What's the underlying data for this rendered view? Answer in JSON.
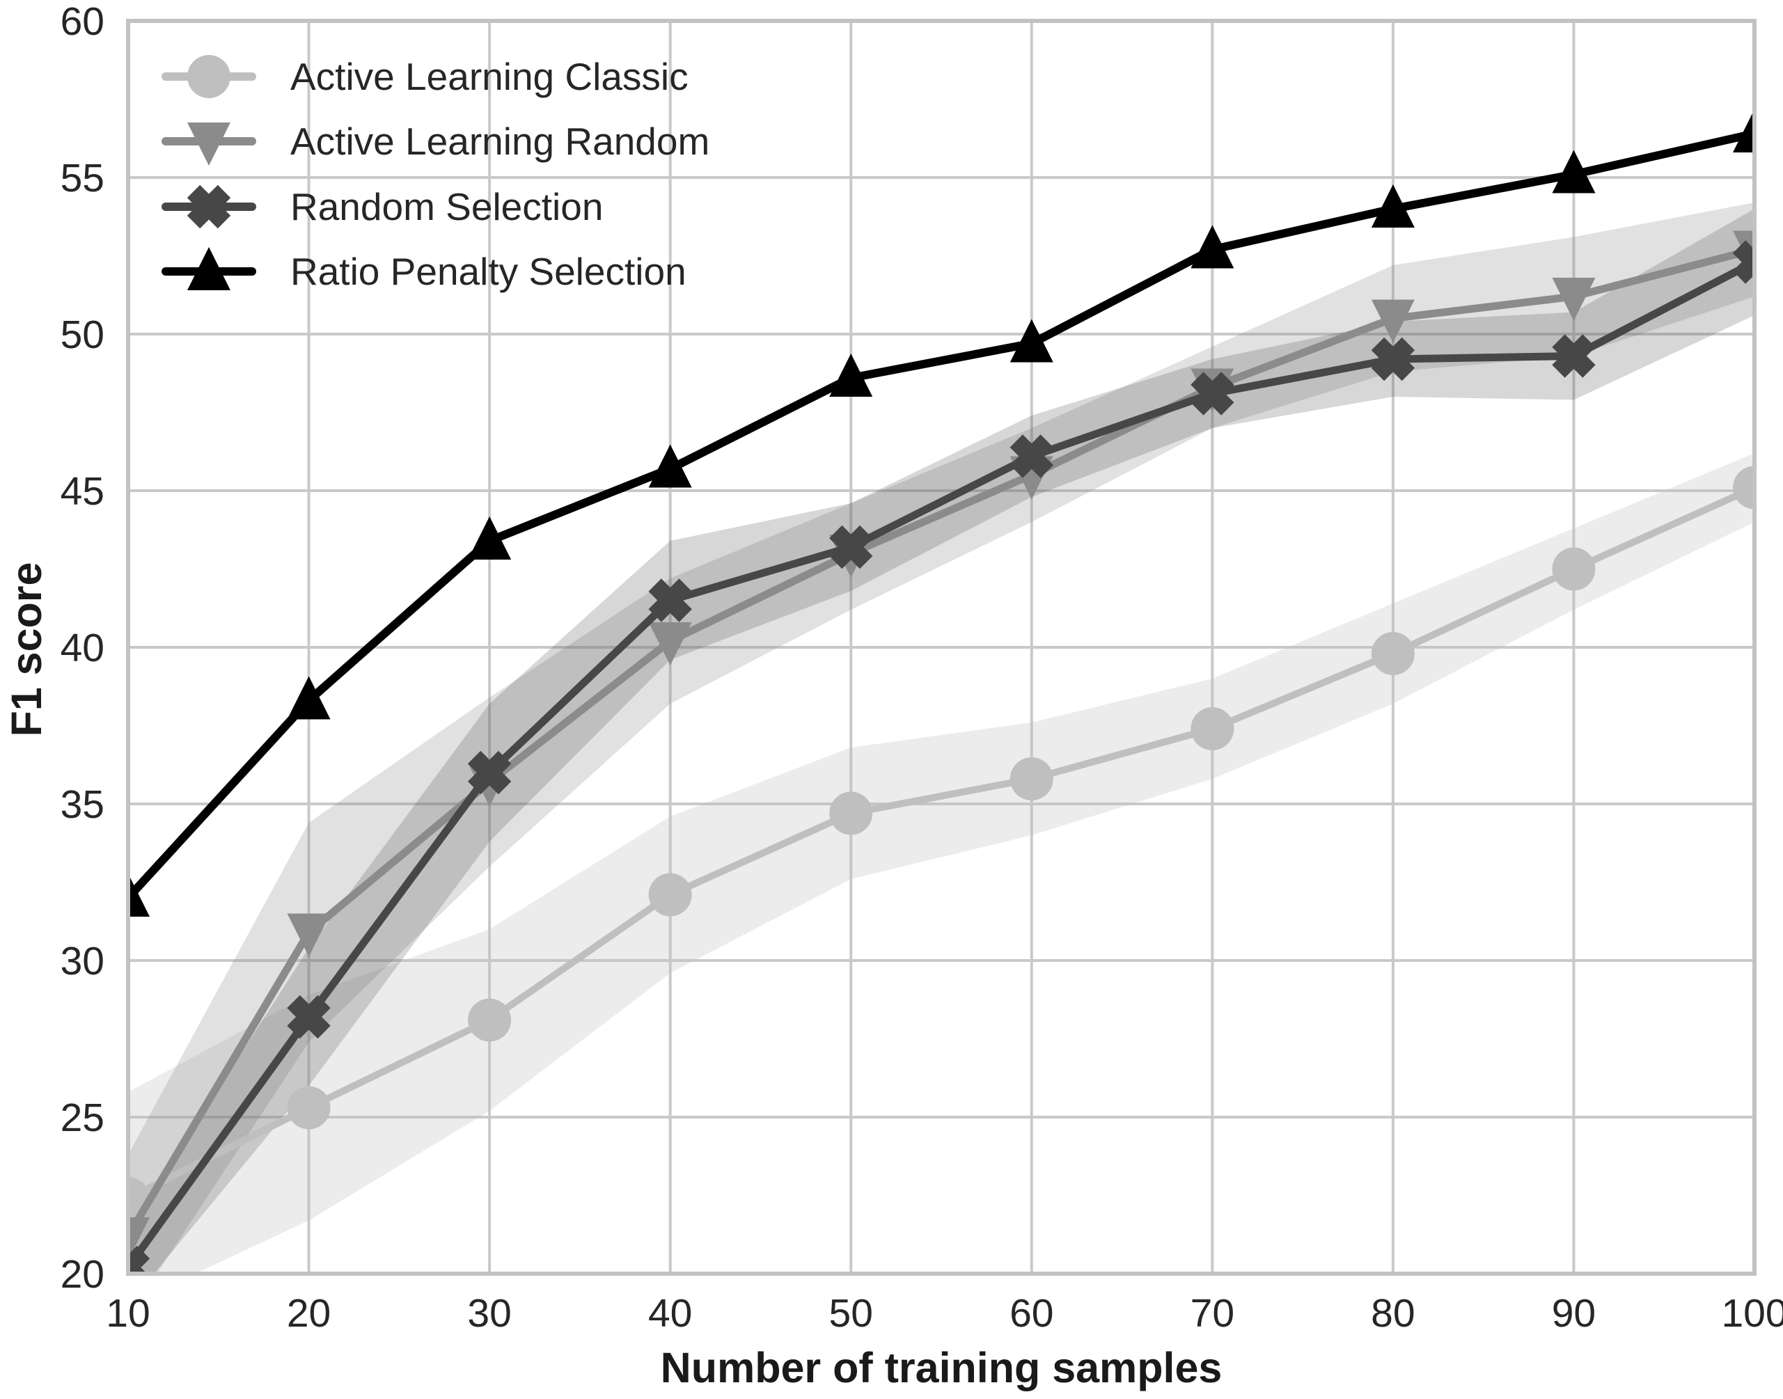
{
  "chart_data": {
    "type": "line",
    "title": "",
    "xlabel": "Number of training samples",
    "ylabel": "F1 score",
    "xlim": [
      10,
      100
    ],
    "ylim": [
      20,
      60
    ],
    "xticks": [
      10,
      20,
      30,
      40,
      50,
      60,
      70,
      80,
      90,
      100
    ],
    "yticks": [
      20,
      25,
      30,
      35,
      40,
      45,
      50,
      55,
      60
    ],
    "grid": true,
    "legend_position": "upper-left",
    "x": [
      10,
      20,
      30,
      40,
      50,
      60,
      70,
      80,
      90,
      100
    ],
    "series": [
      {
        "name": "Active Learning Classic",
        "marker": "circle",
        "color": "#bfbfbf",
        "line_width": 10,
        "values": [
          22.4,
          25.3,
          28.1,
          32.1,
          34.7,
          35.8,
          37.4,
          39.8,
          42.5,
          45.1
        ],
        "band": {
          "lower": [
            19.0,
            21.7,
            25.2,
            29.6,
            32.6,
            34.0,
            35.8,
            38.2,
            41.2,
            44.0
          ],
          "upper": [
            25.8,
            28.9,
            31.0,
            34.6,
            36.8,
            37.6,
            39.0,
            41.4,
            43.8,
            46.2
          ],
          "opacity": 0.3
        }
      },
      {
        "name": "Active Learning Random",
        "marker": "triangle-down",
        "color": "#8b8b8b",
        "line_width": 11,
        "values": [
          21.2,
          30.9,
          35.7,
          40.2,
          43.0,
          45.5,
          48.3,
          50.5,
          51.2,
          52.7
        ],
        "band": {
          "lower": [
            18.6,
            27.4,
            33.0,
            38.2,
            41.2,
            44.0,
            47.0,
            48.8,
            49.3,
            51.2
          ],
          "upper": [
            23.8,
            34.4,
            38.4,
            42.2,
            44.6,
            47.0,
            49.6,
            52.2,
            53.1,
            54.2
          ],
          "opacity": 0.26
        }
      },
      {
        "name": "Random Selection",
        "marker": "x",
        "color": "#474747",
        "line_width": 11,
        "values": [
          20.2,
          28.2,
          36.0,
          41.5,
          43.2,
          46.1,
          48.1,
          49.2,
          49.3,
          52.3
        ],
        "band": {
          "lower": [
            19.0,
            26.0,
            33.8,
            39.6,
            41.8,
            44.8,
            47.0,
            48.0,
            47.9,
            50.6
          ],
          "upper": [
            21.4,
            30.4,
            38.2,
            43.4,
            44.6,
            47.4,
            49.2,
            50.4,
            50.7,
            54.0
          ],
          "opacity": 0.22
        }
      },
      {
        "name": "Ratio Penalty Selection",
        "marker": "triangle-up",
        "color": "#000000",
        "line_width": 12,
        "values": [
          32.0,
          38.3,
          43.4,
          45.7,
          48.6,
          49.7,
          52.7,
          54.0,
          55.1,
          56.4
        ],
        "band": null
      }
    ],
    "style": {
      "background": "#ffffff",
      "grid_color": "#c9c9c9",
      "spine_color": "#c2c2c2",
      "tick_label_color": "#262626",
      "axis_title_color": "#1a1a1a"
    }
  }
}
